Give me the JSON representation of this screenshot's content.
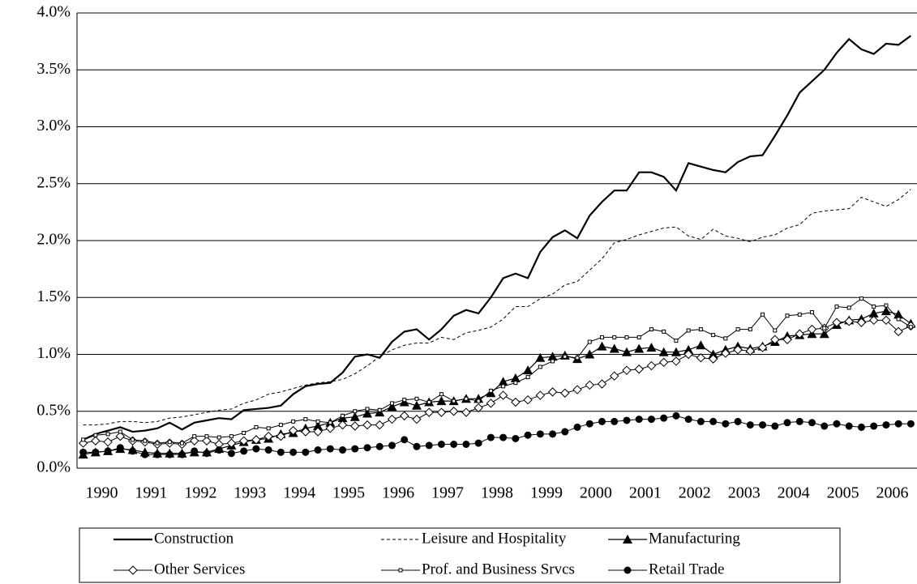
{
  "chart_data": {
    "type": "line",
    "categories": [
      "1990",
      null,
      null,
      null,
      "1991",
      null,
      null,
      null,
      "1992",
      null,
      null,
      null,
      "1993",
      null,
      null,
      null,
      "1994",
      null,
      null,
      null,
      "1995",
      null,
      null,
      null,
      "1996",
      null,
      null,
      null,
      "1997",
      null,
      null,
      null,
      "1998",
      null,
      null,
      null,
      "1999",
      null,
      null,
      null,
      "2000",
      null,
      null,
      null,
      "2001",
      null,
      null,
      null,
      "2002",
      null,
      null,
      null,
      "2003",
      null,
      null,
      null,
      "2004",
      null,
      null,
      null,
      "2005",
      null,
      null,
      null,
      "2006",
      null,
      null,
      null
    ],
    "ylim": [
      0,
      4
    ],
    "yticks": [
      {
        "value": 0,
        "label": "0.0%"
      },
      {
        "value": 0.5,
        "label": "0.5%"
      },
      {
        "value": 1,
        "label": "1.0%"
      },
      {
        "value": 1.5,
        "label": "1.5%"
      },
      {
        "value": 2,
        "label": "2.0%"
      },
      {
        "value": 2.5,
        "label": "2.5%"
      },
      {
        "value": 3,
        "label": "3.0%"
      },
      {
        "value": 3.5,
        "label": "3.5%"
      },
      {
        "value": 4,
        "label": "4.0%"
      }
    ],
    "grid": true,
    "legend": "bottom",
    "series": [
      {
        "name": "Construction",
        "color": "#000000",
        "dash": "solid",
        "marker": "none",
        "width": 2.2,
        "values": [
          0.25,
          0.3,
          0.33,
          0.36,
          0.32,
          0.33,
          0.35,
          0.4,
          0.34,
          0.4,
          0.42,
          0.44,
          0.43,
          0.51,
          0.52,
          0.53,
          0.55,
          0.65,
          0.72,
          0.74,
          0.75,
          0.84,
          0.98,
          1.0,
          0.97,
          1.11,
          1.2,
          1.22,
          1.13,
          1.22,
          1.34,
          1.39,
          1.36,
          1.5,
          1.67,
          1.71,
          1.67,
          1.9,
          2.03,
          2.09,
          2.02,
          2.22,
          2.34,
          2.44,
          2.44,
          2.6,
          2.6,
          2.56,
          2.44,
          2.68,
          2.65,
          2.62,
          2.6,
          2.69,
          2.74,
          2.75,
          2.92,
          3.1,
          3.3,
          3.4,
          3.5,
          3.65,
          3.77,
          3.68,
          3.64,
          3.73,
          3.72,
          3.8
        ]
      },
      {
        "name": "Leisure and Hospitality",
        "color": "#000000",
        "dash": "dashed",
        "marker": "none",
        "width": 1,
        "values": [
          0.38,
          0.38,
          0.39,
          0.41,
          0.41,
          0.4,
          0.41,
          0.44,
          0.45,
          0.47,
          0.49,
          0.51,
          0.52,
          0.57,
          0.6,
          0.65,
          0.67,
          0.7,
          0.73,
          0.75,
          0.76,
          0.78,
          0.83,
          0.9,
          0.98,
          1.04,
          1.08,
          1.1,
          1.1,
          1.15,
          1.13,
          1.19,
          1.21,
          1.24,
          1.31,
          1.42,
          1.42,
          1.49,
          1.53,
          1.61,
          1.64,
          1.74,
          1.84,
          1.98,
          2.01,
          2.05,
          2.08,
          2.11,
          2.12,
          2.04,
          2.01,
          2.1,
          2.04,
          2.02,
          1.99,
          2.03,
          2.05,
          2.11,
          2.14,
          2.24,
          2.26,
          2.27,
          2.28,
          2.38,
          2.34,
          2.3,
          2.36,
          2.45
        ]
      },
      {
        "name": "Manufacturing",
        "color": "#000000",
        "dash": "solid",
        "marker": "triangle",
        "width": 1.2,
        "values": [
          0.12,
          0.14,
          0.15,
          0.17,
          0.16,
          0.14,
          0.13,
          0.13,
          0.13,
          0.14,
          0.14,
          0.17,
          0.2,
          0.23,
          0.25,
          0.26,
          0.3,
          0.31,
          0.35,
          0.37,
          0.4,
          0.44,
          0.45,
          0.48,
          0.49,
          0.54,
          0.58,
          0.55,
          0.58,
          0.59,
          0.59,
          0.61,
          0.61,
          0.66,
          0.76,
          0.79,
          0.86,
          0.97,
          0.98,
          0.99,
          0.96,
          1.0,
          1.07,
          1.05,
          1.02,
          1.05,
          1.06,
          1.02,
          1.02,
          1.04,
          1.08,
          1.0,
          1.04,
          1.07,
          1.05,
          1.07,
          1.11,
          1.16,
          1.17,
          1.18,
          1.18,
          1.26,
          1.3,
          1.31,
          1.36,
          1.38,
          1.35,
          1.27
        ]
      },
      {
        "name": "Other Services",
        "color": "#000000",
        "dash": "solid",
        "marker": "diamond",
        "width": 1,
        "values": [
          0.22,
          0.24,
          0.23,
          0.28,
          0.24,
          0.23,
          0.21,
          0.22,
          0.21,
          0.24,
          0.24,
          0.21,
          0.22,
          0.24,
          0.25,
          0.28,
          0.28,
          0.33,
          0.32,
          0.32,
          0.35,
          0.38,
          0.37,
          0.38,
          0.38,
          0.43,
          0.46,
          0.43,
          0.49,
          0.49,
          0.5,
          0.49,
          0.53,
          0.57,
          0.64,
          0.58,
          0.6,
          0.64,
          0.67,
          0.66,
          0.69,
          0.73,
          0.74,
          0.81,
          0.86,
          0.87,
          0.9,
          0.93,
          0.94,
          1.0,
          0.97,
          0.96,
          1.01,
          1.04,
          1.03,
          1.06,
          1.13,
          1.13,
          1.18,
          1.22,
          1.23,
          1.28,
          1.29,
          1.28,
          1.3,
          1.3,
          1.2,
          1.25
        ]
      },
      {
        "name": "Prof. and Business Srvcs",
        "color": "#000000",
        "dash": "solid",
        "marker": "square",
        "width": 1,
        "values": [
          0.25,
          0.29,
          0.3,
          0.32,
          0.25,
          0.24,
          0.22,
          0.23,
          0.22,
          0.28,
          0.28,
          0.27,
          0.28,
          0.31,
          0.36,
          0.35,
          0.38,
          0.41,
          0.43,
          0.41,
          0.4,
          0.46,
          0.5,
          0.52,
          0.51,
          0.57,
          0.6,
          0.61,
          0.58,
          0.65,
          0.59,
          0.61,
          0.59,
          0.68,
          0.72,
          0.75,
          0.8,
          0.89,
          0.94,
          0.98,
          0.97,
          1.11,
          1.15,
          1.15,
          1.15,
          1.15,
          1.22,
          1.2,
          1.12,
          1.21,
          1.22,
          1.17,
          1.14,
          1.22,
          1.22,
          1.35,
          1.21,
          1.34,
          1.35,
          1.37,
          1.23,
          1.42,
          1.41,
          1.49,
          1.42,
          1.43,
          1.31,
          1.24
        ]
      },
      {
        "name": "Retail Trade",
        "color": "#000000",
        "dash": "solid",
        "marker": "circle",
        "width": 1,
        "values": [
          0.14,
          0.14,
          0.15,
          0.18,
          0.15,
          0.12,
          0.12,
          0.12,
          0.12,
          0.15,
          0.13,
          0.16,
          0.13,
          0.15,
          0.17,
          0.16,
          0.14,
          0.14,
          0.14,
          0.16,
          0.17,
          0.16,
          0.17,
          0.18,
          0.19,
          0.2,
          0.25,
          0.19,
          0.2,
          0.21,
          0.21,
          0.21,
          0.22,
          0.27,
          0.27,
          0.26,
          0.29,
          0.3,
          0.3,
          0.32,
          0.36,
          0.39,
          0.41,
          0.41,
          0.42,
          0.43,
          0.43,
          0.44,
          0.46,
          0.43,
          0.41,
          0.41,
          0.39,
          0.41,
          0.38,
          0.38,
          0.37,
          0.4,
          0.41,
          0.4,
          0.37,
          0.39,
          0.37,
          0.36,
          0.37,
          0.38,
          0.39,
          0.39
        ]
      }
    ]
  }
}
